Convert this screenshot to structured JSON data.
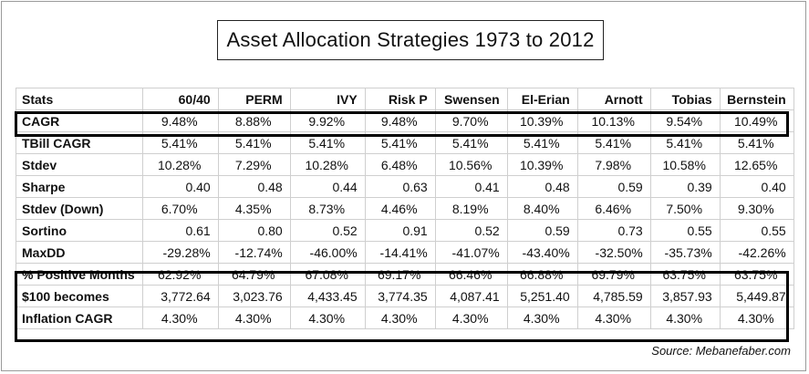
{
  "title": "Asset Allocation Strategies 1973 to 2012",
  "columns": [
    "Stats",
    "60/40",
    "PERM",
    "IVY",
    "Risk P",
    "Swensen",
    "El-Erian",
    "Arnott",
    "Tobias",
    "Bernstein"
  ],
  "rows": [
    {
      "label": "CAGR",
      "align": "ctr",
      "values": [
        "9.48%",
        "8.88%",
        "9.92%",
        "9.48%",
        "9.70%",
        "10.39%",
        "10.13%",
        "9.54%",
        "10.49%"
      ]
    },
    {
      "label": "TBill CAGR",
      "align": "ctr",
      "values": [
        "5.41%",
        "5.41%",
        "5.41%",
        "5.41%",
        "5.41%",
        "5.41%",
        "5.41%",
        "5.41%",
        "5.41%"
      ]
    },
    {
      "label": "Stdev",
      "align": "ctr",
      "values": [
        "10.28%",
        "7.29%",
        "10.28%",
        "6.48%",
        "10.56%",
        "10.39%",
        "7.98%",
        "10.58%",
        "12.65%"
      ]
    },
    {
      "label": "Sharpe",
      "align": "val",
      "values": [
        "0.40",
        "0.48",
        "0.44",
        "0.63",
        "0.41",
        "0.48",
        "0.59",
        "0.39",
        "0.40"
      ]
    },
    {
      "label": "Stdev (Down)",
      "align": "ctr",
      "values": [
        "6.70%",
        "4.35%",
        "8.73%",
        "4.46%",
        "8.19%",
        "8.40%",
        "6.46%",
        "7.50%",
        "9.30%"
      ]
    },
    {
      "label": "Sortino",
      "align": "val",
      "values": [
        "0.61",
        "0.80",
        "0.52",
        "0.91",
        "0.52",
        "0.59",
        "0.73",
        "0.55",
        "0.55"
      ]
    },
    {
      "label": "MaxDD",
      "align": "val",
      "values": [
        "-29.28%",
        "-12.74%",
        "-46.00%",
        "-14.41%",
        "-41.07%",
        "-43.40%",
        "-32.50%",
        "-35.73%",
        "-42.26%"
      ]
    },
    {
      "label": "% Positive Months",
      "align": "ctr",
      "values": [
        "62.92%",
        "64.79%",
        "67.08%",
        "69.17%",
        "66.46%",
        "66.88%",
        "69.79%",
        "63.75%",
        "63.75%"
      ]
    },
    {
      "label": "$100 becomes",
      "align": "val",
      "values": [
        "3,772.64",
        "3,023.76",
        "4,433.45",
        "3,774.35",
        "4,087.41",
        "5,251.40",
        "4,785.59",
        "3,857.93",
        "5,449.87"
      ]
    },
    {
      "label": "Inflation CAGR",
      "align": "ctr",
      "values": [
        "4.30%",
        "4.30%",
        "4.30%",
        "4.30%",
        "4.30%",
        "4.30%",
        "4.30%",
        "4.30%",
        "4.30%"
      ]
    }
  ],
  "source": "Source: Mebanefaber.com"
}
